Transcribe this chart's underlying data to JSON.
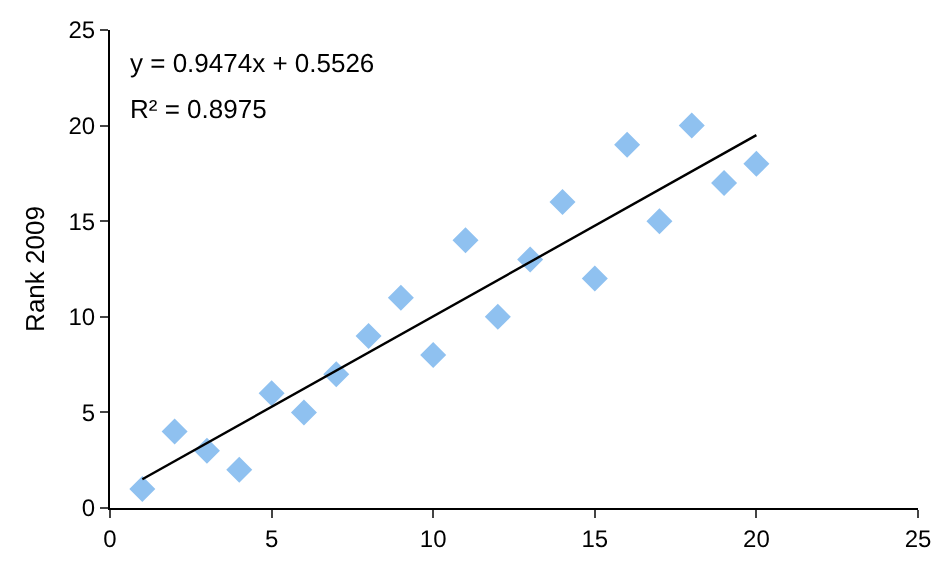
{
  "chart_data": {
    "type": "scatter",
    "ylabel": "Rank 2009",
    "x": [
      1,
      2,
      3,
      4,
      5,
      6,
      7,
      8,
      9,
      10,
      11,
      12,
      13,
      14,
      15,
      16,
      17,
      18,
      19,
      20
    ],
    "series": [
      {
        "color": "#8fc1f0",
        "marker": "diamond",
        "values": [
          1,
          4,
          3,
          2,
          6,
          5,
          7,
          9,
          11,
          8,
          14,
          10,
          13,
          16,
          12,
          19,
          15,
          20,
          17,
          18
        ]
      },
      {
        "type": "line",
        "color": "#000000",
        "marker": "none",
        "x": [
          1,
          20
        ],
        "values": [
          1.5,
          19.5
        ]
      }
    ],
    "xlim": [
      0,
      25
    ],
    "xticks": [
      0,
      5,
      10,
      15,
      20,
      25
    ],
    "ylim": [
      0,
      25
    ],
    "yticks": [
      0,
      5,
      10,
      15,
      20,
      25
    ],
    "legend": false,
    "annotations": [
      "y = 0.9474x + 0.5526",
      "R² = 0.8975"
    ]
  }
}
